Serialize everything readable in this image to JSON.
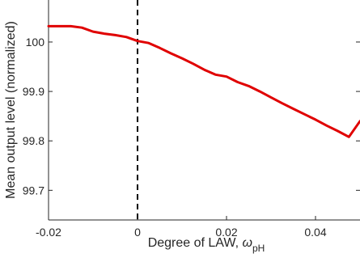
{
  "chart_data": {
    "type": "line",
    "xlabel": "Degree of LAW, ",
    "xlabel_symbol": "ω",
    "xlabel_subscript": "pH",
    "ylabel": "Mean output level (normalized)",
    "xlim": [
      -0.02,
      0.05
    ],
    "ylim": [
      99.64,
      100.085
    ],
    "x_ticks": [
      -0.02,
      0,
      0.02,
      0.04
    ],
    "x_tick_labels": [
      "-0.02",
      "0",
      "0.02",
      "0.04"
    ],
    "y_ticks": [
      99.7,
      99.8,
      99.9,
      100
    ],
    "y_tick_labels": [
      "99.7",
      "99.8",
      "99.9",
      "100"
    ],
    "grid": false,
    "reference_line": {
      "x": 0,
      "style": "dashed",
      "color": "#000000"
    },
    "series": [
      {
        "color": "#e00000",
        "x": [
          -0.02,
          -0.0175,
          -0.015,
          -0.0125,
          -0.01,
          -0.0075,
          -0.005,
          -0.0025,
          0,
          0.0025,
          0.005,
          0.0075,
          0.01,
          0.0125,
          0.015,
          0.0175,
          0.02,
          0.0225,
          0.025,
          0.0275,
          0.03,
          0.0325,
          0.035,
          0.0375,
          0.04,
          0.0425,
          0.045,
          0.0475,
          0.05
        ],
        "y": [
          100.032,
          100.032,
          100.032,
          100.029,
          100.021,
          100.017,
          100.014,
          100.01,
          100.002,
          99.998,
          99.988,
          99.977,
          99.967,
          99.956,
          99.944,
          99.934,
          99.93,
          99.919,
          99.911,
          99.9,
          99.888,
          99.876,
          99.865,
          99.854,
          99.843,
          99.831,
          99.82,
          99.808,
          99.84
        ]
      }
    ]
  }
}
